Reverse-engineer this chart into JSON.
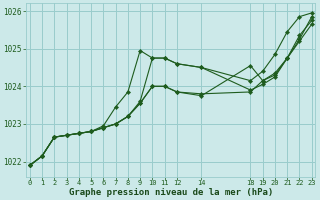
{
  "background_color": "#cce9e9",
  "grid_color": "#99cccc",
  "line_color": "#1e5c1e",
  "marker_color": "#1e5c1e",
  "xlabel": "Graphe pression niveau de la mer (hPa)",
  "xlabel_color": "#1a4a1a",
  "ylim": [
    1021.6,
    1026.2
  ],
  "xlim": [
    -0.3,
    23.3
  ],
  "yticks": [
    1022,
    1023,
    1024,
    1025,
    1026
  ],
  "xtick_positions": [
    0,
    1,
    2,
    3,
    4,
    5,
    6,
    7,
    8,
    9,
    10,
    11,
    12,
    14,
    18,
    19,
    20,
    21,
    22,
    23
  ],
  "xtick_labels": [
    "0",
    "1",
    "2",
    "3",
    "4",
    "5",
    "6",
    "7",
    "8",
    "9",
    "10",
    "11",
    "12",
    "14",
    "18",
    "19",
    "20",
    "21",
    "22",
    "23"
  ],
  "series": [
    {
      "x": [
        0,
        1,
        2,
        3,
        4,
        5,
        6,
        7,
        8,
        9,
        10,
        11,
        12,
        14,
        18,
        19,
        20,
        21,
        22,
        23
      ],
      "y": [
        1021.9,
        1022.15,
        1022.65,
        1022.7,
        1022.75,
        1022.8,
        1022.95,
        1023.45,
        1023.85,
        1024.95,
        1024.75,
        1024.75,
        1024.6,
        1024.5,
        1024.15,
        1024.4,
        1024.85,
        1025.45,
        1025.85,
        1025.95
      ]
    },
    {
      "x": [
        0,
        1,
        2,
        3,
        4,
        5,
        6,
        7,
        8,
        9,
        10,
        11,
        12,
        14,
        18,
        19,
        20,
        21,
        22,
        23
      ],
      "y": [
        1021.9,
        1022.15,
        1022.65,
        1022.7,
        1022.75,
        1022.8,
        1022.9,
        1023.0,
        1023.2,
        1023.55,
        1024.0,
        1024.0,
        1023.85,
        1023.8,
        1023.85,
        1024.15,
        1024.35,
        1024.75,
        1025.35,
        1025.75
      ]
    },
    {
      "x": [
        0,
        1,
        2,
        3,
        4,
        5,
        6,
        7,
        8,
        9,
        10,
        11,
        12,
        14,
        18,
        19,
        20,
        21,
        22,
        23
      ],
      "y": [
        1021.9,
        1022.15,
        1022.65,
        1022.7,
        1022.75,
        1022.8,
        1022.9,
        1023.0,
        1023.2,
        1023.55,
        1024.0,
        1024.0,
        1023.85,
        1023.75,
        1024.55,
        1024.15,
        1024.3,
        1024.75,
        1025.2,
        1025.65
      ]
    },
    {
      "x": [
        0,
        1,
        2,
        3,
        4,
        5,
        6,
        7,
        8,
        9,
        10,
        11,
        12,
        14,
        18,
        19,
        20,
        21,
        22,
        23
      ],
      "y": [
        1021.9,
        1022.15,
        1022.65,
        1022.7,
        1022.75,
        1022.8,
        1022.9,
        1023.0,
        1023.2,
        1023.6,
        1024.75,
        1024.75,
        1024.6,
        1024.5,
        1023.9,
        1024.05,
        1024.25,
        1024.75,
        1025.25,
        1025.85
      ]
    }
  ]
}
